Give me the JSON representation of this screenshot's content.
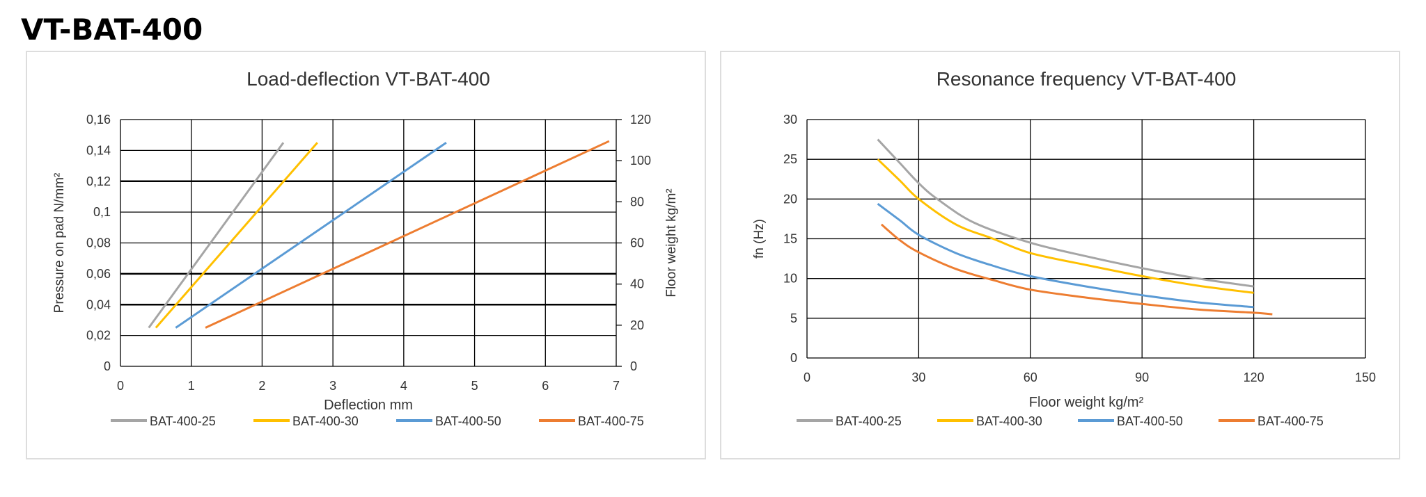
{
  "page_title": "VT-BAT-400",
  "colors": {
    "BAT-400-25": "#a5a5a5",
    "BAT-400-30": "#ffc000",
    "BAT-400-50": "#5b9bd5",
    "BAT-400-75": "#ed7d31"
  },
  "chart_data": [
    {
      "type": "line",
      "title": "Load-deflection VT-BAT-400",
      "xlabel": "Deflection mm",
      "ylabel": "Pressure on pad N/mm²",
      "y2label": "Floor weight kg/m²",
      "xlim": [
        0,
        7
      ],
      "ylim": [
        0,
        0.16
      ],
      "y2lim": [
        0,
        120
      ],
      "xticks": [
        "0",
        "1",
        "2",
        "3",
        "4",
        "5",
        "6",
        "7"
      ],
      "yticks": [
        "0",
        "0,02",
        "0,04",
        "0,06",
        "0,08",
        "0,1",
        "0,12",
        "0,14",
        "0,16"
      ],
      "y2ticks": [
        "0",
        "20",
        "40",
        "60",
        "80",
        "100",
        "120"
      ],
      "grid": true,
      "legend": "bottom",
      "series": [
        {
          "name": "BAT-400-25",
          "points": [
            [
              0.4,
              0.025
            ],
            [
              2.3,
              0.145
            ]
          ]
        },
        {
          "name": "BAT-400-30",
          "points": [
            [
              0.5,
              0.025
            ],
            [
              2.78,
              0.145
            ]
          ]
        },
        {
          "name": "BAT-400-50",
          "points": [
            [
              0.78,
              0.025
            ],
            [
              4.6,
              0.145
            ]
          ]
        },
        {
          "name": "BAT-400-75",
          "points": [
            [
              1.2,
              0.025
            ],
            [
              6.9,
              0.146
            ]
          ]
        }
      ]
    },
    {
      "type": "line",
      "title": "Resonance frequency VT-BAT-400",
      "xlabel": "Floor weight kg/m²",
      "ylabel": "fn (Hz)",
      "xlim": [
        0,
        150
      ],
      "ylim": [
        0,
        30
      ],
      "xticks": [
        "0",
        "30",
        "60",
        "90",
        "120",
        "150"
      ],
      "yticks": [
        "0",
        "5",
        "10",
        "15",
        "20",
        "25",
        "30"
      ],
      "grid": true,
      "legend": "bottom",
      "series": [
        {
          "name": "BAT-400-25",
          "points": [
            [
              19,
              27.5
            ],
            [
              25,
              24.5
            ],
            [
              30,
              22
            ],
            [
              35,
              20
            ],
            [
              45,
              17
            ],
            [
              60,
              14.5
            ],
            [
              75,
              12.8
            ],
            [
              90,
              11.3
            ],
            [
              105,
              10
            ],
            [
              120,
              9
            ]
          ]
        },
        {
          "name": "BAT-400-30",
          "points": [
            [
              19,
              25
            ],
            [
              25,
              22.3
            ],
            [
              30,
              20
            ],
            [
              40,
              16.8
            ],
            [
              50,
              15
            ],
            [
              60,
              13.2
            ],
            [
              75,
              11.7
            ],
            [
              90,
              10.3
            ],
            [
              105,
              9.1
            ],
            [
              120,
              8.2
            ]
          ]
        },
        {
          "name": "BAT-400-50",
          "points": [
            [
              19,
              19.4
            ],
            [
              25,
              17.3
            ],
            [
              30,
              15.5
            ],
            [
              40,
              13.2
            ],
            [
              50,
              11.6
            ],
            [
              60,
              10.3
            ],
            [
              75,
              9
            ],
            [
              90,
              7.9
            ],
            [
              105,
              7
            ],
            [
              120,
              6.4
            ]
          ]
        },
        {
          "name": "BAT-400-75",
          "points": [
            [
              20,
              16.8
            ],
            [
              25,
              14.8
            ],
            [
              30,
              13.3
            ],
            [
              40,
              11.2
            ],
            [
              50,
              9.8
            ],
            [
              60,
              8.6
            ],
            [
              75,
              7.6
            ],
            [
              90,
              6.8
            ],
            [
              105,
              6.1
            ],
            [
              120,
              5.7
            ],
            [
              125,
              5.5
            ]
          ]
        }
      ]
    }
  ]
}
